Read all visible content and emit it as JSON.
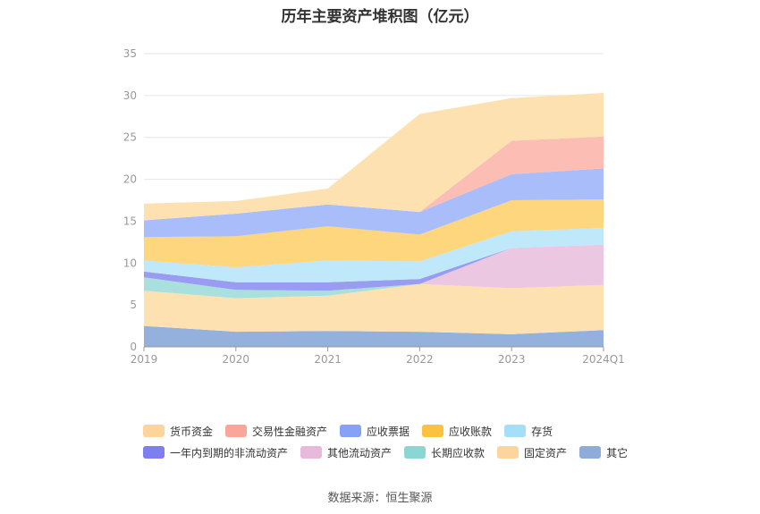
{
  "chart_data": {
    "type": "area",
    "stacked": true,
    "title": "历年主要资产堆积图（亿元）",
    "categories": [
      "2019",
      "2020",
      "2021",
      "2022",
      "2023",
      "2024Q1"
    ],
    "ylim": [
      0,
      35
    ],
    "yticks": [
      0,
      5,
      10,
      15,
      20,
      25,
      30,
      35
    ],
    "grid": true,
    "legend_position": "bottom",
    "series": [
      {
        "name": "其它",
        "color": "#94b0dc",
        "values": [
          2.5,
          1.8,
          1.9,
          1.8,
          1.5,
          2.0
        ]
      },
      {
        "name": "固定资产",
        "color": "#fde1b1",
        "values": [
          4.2,
          4.0,
          4.2,
          5.7,
          5.5,
          5.4
        ]
      },
      {
        "name": "长期应收款",
        "color": "#a9e0de",
        "values": [
          1.6,
          1.0,
          0.6,
          0.0,
          0.0,
          0.0
        ]
      },
      {
        "name": "其他流动资产",
        "color": "#ecc7e1",
        "values": [
          0.0,
          0.0,
          0.0,
          0.0,
          4.8,
          4.8
        ]
      },
      {
        "name": "一年内到期的非流动资产",
        "color": "#9a9cf2",
        "values": [
          0.7,
          0.9,
          1.0,
          0.6,
          0.0,
          0.0
        ]
      },
      {
        "name": "存货",
        "color": "#bfe8fa",
        "values": [
          1.3,
          1.8,
          2.6,
          2.1,
          2.0,
          2.0
        ]
      },
      {
        "name": "应收账款",
        "color": "#fdd67e",
        "values": [
          2.8,
          3.7,
          4.1,
          3.2,
          3.7,
          3.4
        ]
      },
      {
        "name": "应收票据",
        "color": "#a9bdfb",
        "values": [
          2.0,
          2.7,
          2.6,
          2.7,
          3.1,
          3.7
        ]
      },
      {
        "name": "交易性金融资产",
        "color": "#fbbdb4",
        "values": [
          0.0,
          0.0,
          0.0,
          0.0,
          4.0,
          3.8
        ]
      },
      {
        "name": "货币资金",
        "color": "#fde1b1",
        "values": [
          2.0,
          1.5,
          1.9,
          11.7,
          5.1,
          5.2
        ]
      }
    ]
  },
  "legend": {
    "row1": [
      {
        "name": "货币资金",
        "color": "#fdd59c"
      },
      {
        "name": "交易性金融资产",
        "color": "#f9a59a"
      },
      {
        "name": "应收票据",
        "color": "#85a2f7"
      },
      {
        "name": "应收账款",
        "color": "#fbc23e"
      },
      {
        "name": "存货",
        "color": "#a4dff7"
      }
    ],
    "row2": [
      {
        "name": "一年内到期的非流动资产",
        "color": "#7d7ff0"
      },
      {
        "name": "其他流动资产",
        "color": "#e7b9da"
      },
      {
        "name": "长期应收款",
        "color": "#89d6d3"
      },
      {
        "name": "固定资产",
        "color": "#fdd59c"
      },
      {
        "name": "其它",
        "color": "#8eabd9"
      }
    ]
  },
  "source": "数据来源：恒生聚源"
}
